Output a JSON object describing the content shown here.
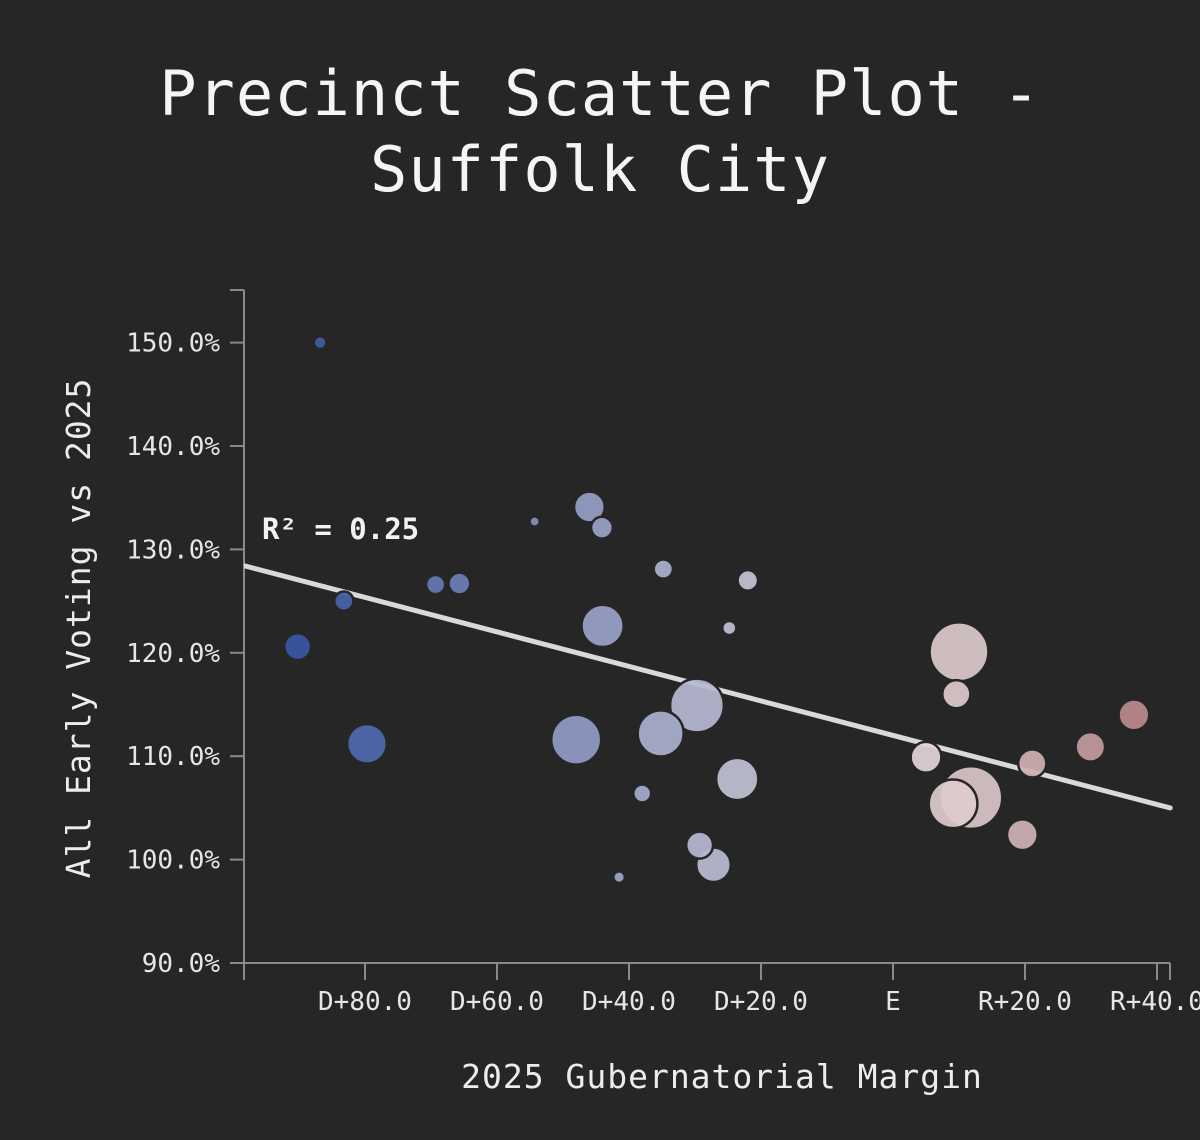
{
  "chart_data": {
    "type": "scatter",
    "title": "Precinct Scatter Plot -\nSuffolk City",
    "xlabel": "2025 Gubernatorial Margin",
    "ylabel": "All Early Voting vs 2025",
    "annotation": "R² = 0.25",
    "xlim": [
      -100,
      40
    ],
    "ylim": [
      90,
      155
    ],
    "x_ticks": [
      {
        "value": -80,
        "label": "D+80.0"
      },
      {
        "value": -60,
        "label": "D+60.0"
      },
      {
        "value": -40,
        "label": "D+40.0"
      },
      {
        "value": -20,
        "label": "D+20.0"
      },
      {
        "value": 0,
        "label": "E"
      },
      {
        "value": 20,
        "label": "R+20.0"
      },
      {
        "value": 40,
        "label": "R+40.0"
      }
    ],
    "y_ticks": [
      {
        "value": 90,
        "label": "90.0%"
      },
      {
        "value": 100,
        "label": "100.0%"
      },
      {
        "value": 110,
        "label": "110.0%"
      },
      {
        "value": 120,
        "label": "120.0%"
      },
      {
        "value": 130,
        "label": "130.0%"
      },
      {
        "value": 140,
        "label": "140.0%"
      },
      {
        "value": 150,
        "label": "150.0%"
      }
    ],
    "trendline": {
      "x": [
        -100,
        42
      ],
      "y": [
        128.7,
        105.0
      ]
    },
    "grid": false,
    "legend": "none",
    "points": [
      {
        "x": -86.8,
        "y": 150.0,
        "size": 1.0
      },
      {
        "x": -90.2,
        "y": 120.6,
        "size": 2.1
      },
      {
        "x": -83.2,
        "y": 125.0,
        "size": 1.5
      },
      {
        "x": -79.7,
        "y": 111.2,
        "size": 3.1
      },
      {
        "x": -69.3,
        "y": 126.6,
        "size": 1.5
      },
      {
        "x": -65.7,
        "y": 126.7,
        "size": 1.7
      },
      {
        "x": -54.3,
        "y": 132.7,
        "size": 0.8
      },
      {
        "x": -48.0,
        "y": 111.6,
        "size": 3.9
      },
      {
        "x": -46.0,
        "y": 134.1,
        "size": 2.4
      },
      {
        "x": -44.1,
        "y": 132.1,
        "size": 1.7
      },
      {
        "x": -44.0,
        "y": 122.6,
        "size": 3.3
      },
      {
        "x": -41.5,
        "y": 98.3,
        "size": 0.9
      },
      {
        "x": -38.0,
        "y": 106.4,
        "size": 1.4
      },
      {
        "x": -35.2,
        "y": 112.2,
        "size": 3.6
      },
      {
        "x": -34.8,
        "y": 128.1,
        "size": 1.5
      },
      {
        "x": -29.7,
        "y": 114.9,
        "size": 4.2
      },
      {
        "x": -29.3,
        "y": 101.4,
        "size": 2.1
      },
      {
        "x": -27.2,
        "y": 99.5,
        "size": 2.7
      },
      {
        "x": -24.8,
        "y": 122.4,
        "size": 1.1
      },
      {
        "x": -23.6,
        "y": 107.8,
        "size": 3.3
      },
      {
        "x": -22.0,
        "y": 127.0,
        "size": 1.6
      },
      {
        "x": 5.0,
        "y": 109.9,
        "size": 2.4
      },
      {
        "x": 9.1,
        "y": 105.4,
        "size": 3.8
      },
      {
        "x": 9.6,
        "y": 116.0,
        "size": 2.2
      },
      {
        "x": 10.0,
        "y": 120.1,
        "size": 4.6
      },
      {
        "x": 11.8,
        "y": 106.0,
        "size": 4.9
      },
      {
        "x": 19.6,
        "y": 102.4,
        "size": 2.4
      },
      {
        "x": 21.1,
        "y": 109.3,
        "size": 2.2
      },
      {
        "x": 29.9,
        "y": 110.9,
        "size": 2.3
      },
      {
        "x": 36.5,
        "y": 114.0,
        "size": 2.4
      }
    ],
    "colors": {
      "strong_dem": "#3a57a6",
      "neutral": "#e8e0e2",
      "strong_rep": "#b8888a",
      "trendline": "#d9d9d9",
      "axis": "#8a8a8a"
    }
  }
}
